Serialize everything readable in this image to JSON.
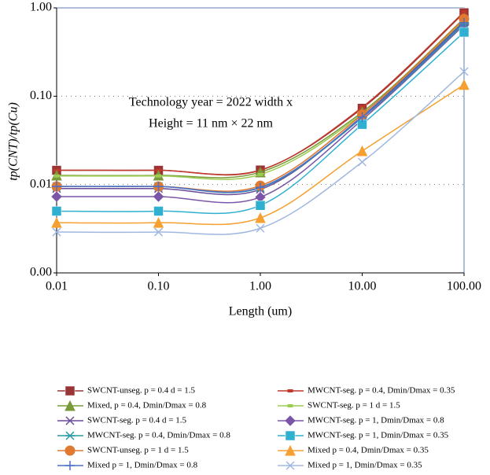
{
  "chart_data": {
    "type": "line",
    "x_log": true,
    "y_log": true,
    "ylabel": "tp(CNT)/tp(Cu)",
    "xlabel": "Length (um)",
    "annotations": [
      "Technology year = 2022 width x",
      "Height = 11 nm × 22 nm"
    ],
    "x": [
      0.01,
      0.1,
      1,
      10,
      100
    ],
    "xlim": [
      0.01,
      100
    ],
    "xticks": [
      0.01,
      {
        "value": 0.1,
        "label": "0.10"
      },
      {
        "value": 1,
        "label": "1.00"
      },
      {
        "value": 10,
        "label": "10.00"
      },
      {
        "value": 100,
        "label": "100.00"
      }
    ],
    "ylim": [
      0.001,
      1
    ],
    "yticks": [
      {
        "value": 0.001,
        "label": "0.00"
      },
      0.01,
      {
        "value": 0.1,
        "label": "0.10"
      },
      {
        "value": 1,
        "label": "1.00"
      }
    ],
    "grid": true,
    "series": [
      {
        "name": "SWCNT-unseg. p = 0.4 d = 1.5",
        "color": "#9b3535",
        "marker": "square",
        "values": [
          0.0145,
          0.0145,
          0.0146,
          0.073,
          0.88
        ]
      },
      {
        "name": "MWCNT-seg. p = 0.4, Dmin/Dmax = 0.35",
        "color": "#c0392b",
        "marker": "dash",
        "values": [
          0.0145,
          0.0145,
          0.0145,
          0.075,
          0.9
        ]
      },
      {
        "name": "Mixed, p = 0.4, Dmin/Dmax = 0.8",
        "color": "#7a9a3a",
        "marker": "triangle",
        "values": [
          0.0127,
          0.0127,
          0.0138,
          0.066,
          0.76
        ]
      },
      {
        "name": "SWCNT-seg. p = 1 d = 1.5",
        "color": "#9acd50",
        "marker": "dash",
        "values": [
          0.0125,
          0.0125,
          0.013,
          0.063,
          0.72
        ]
      },
      {
        "name": "SWCNT-seg. p = 0.4 d = 1.5",
        "color": "#6a4a9a",
        "marker": "x",
        "values": [
          0.009,
          0.009,
          0.0088,
          0.059,
          0.7
        ]
      },
      {
        "name": "MWCNT-seg. p = 1, Dmin/Dmax = 0.8",
        "color": "#7a55a8",
        "marker": "diamond",
        "values": [
          0.0073,
          0.0073,
          0.0072,
          0.054,
          0.64
        ]
      },
      {
        "name": "MWCNT-seg. p = 0.4, Dmin/Dmax = 0.8",
        "color": "#2a9aa0",
        "marker": "star",
        "values": [
          0.0095,
          0.0095,
          0.0092,
          0.057,
          0.66
        ]
      },
      {
        "name": "MWCNT-seg. p = 1, Dmin/Dmax = 0.35",
        "color": "#2fb0d0",
        "marker": "square",
        "values": [
          0.005,
          0.005,
          0.0058,
          0.048,
          0.53
        ]
      },
      {
        "name": "SWCNT-unseg. p = 1 d = 1.5",
        "color": "#e07a30",
        "marker": "circle",
        "values": [
          0.0095,
          0.0095,
          0.0097,
          0.062,
          0.75
        ]
      },
      {
        "name": "Mixed p = 0.4, Dmin/Dmax = 0.35",
        "color": "#f5a030",
        "marker": "triangle",
        "values": [
          0.0037,
          0.0037,
          0.0042,
          0.024,
          0.135
        ]
      },
      {
        "name": "Mixed p = 1, Dmin/Dmax = 0.8",
        "color": "#4a70c8",
        "marker": "plus",
        "values": [
          0.0095,
          0.0095,
          0.0093,
          0.058,
          0.68
        ]
      },
      {
        "name": "Mixed p = 1, Dmin/Dmax = 0.35",
        "color": "#a0b8e0",
        "marker": "x",
        "values": [
          0.0029,
          0.0029,
          0.0032,
          0.018,
          0.19
        ]
      }
    ]
  }
}
